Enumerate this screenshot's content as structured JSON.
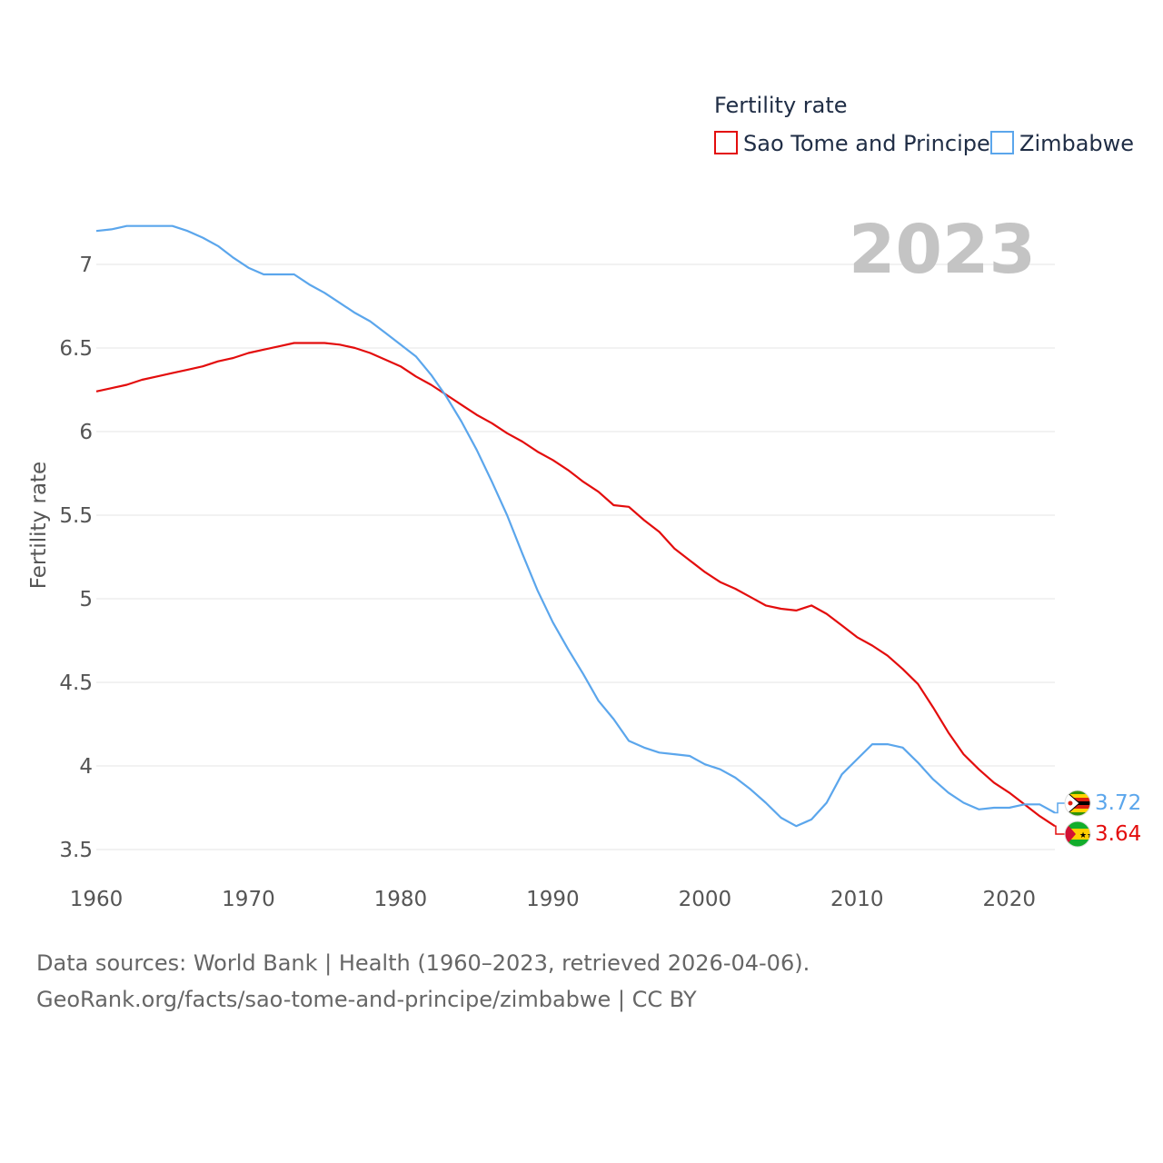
{
  "chart_data": {
    "type": "line",
    "title": "2023",
    "legend_title": "Fertility rate",
    "legend_position": "top-right",
    "xlabel": "",
    "ylabel": "Fertility rate",
    "xlim": [
      1960,
      2023
    ],
    "ylim": [
      3.38,
      7.3
    ],
    "xticks": [
      1960,
      1970,
      1980,
      1990,
      2000,
      2010,
      2020
    ],
    "yticks": [
      3.5,
      4,
      4.5,
      5,
      5.5,
      6,
      6.5,
      7
    ],
    "x": [
      1960,
      1961,
      1962,
      1963,
      1964,
      1965,
      1966,
      1967,
      1968,
      1969,
      1970,
      1971,
      1972,
      1973,
      1974,
      1975,
      1976,
      1977,
      1978,
      1979,
      1980,
      1981,
      1982,
      1983,
      1984,
      1985,
      1986,
      1987,
      1988,
      1989,
      1990,
      1991,
      1992,
      1993,
      1994,
      1995,
      1996,
      1997,
      1998,
      1999,
      2000,
      2001,
      2002,
      2003,
      2004,
      2005,
      2006,
      2007,
      2008,
      2009,
      2010,
      2011,
      2012,
      2013,
      2014,
      2015,
      2016,
      2017,
      2018,
      2019,
      2020,
      2021,
      2022,
      2023
    ],
    "series": [
      {
        "name": "Sao Tome and Principe",
        "color": "#e30d0d",
        "end_label": "3.64",
        "values": [
          6.24,
          6.26,
          6.28,
          6.31,
          6.33,
          6.35,
          6.37,
          6.39,
          6.42,
          6.44,
          6.47,
          6.49,
          6.51,
          6.53,
          6.53,
          6.53,
          6.52,
          6.5,
          6.47,
          6.43,
          6.39,
          6.33,
          6.28,
          6.22,
          6.16,
          6.1,
          6.05,
          5.99,
          5.94,
          5.88,
          5.83,
          5.77,
          5.7,
          5.64,
          5.56,
          5.55,
          5.47,
          5.4,
          5.3,
          5.23,
          5.16,
          5.1,
          5.06,
          5.01,
          4.96,
          4.94,
          4.93,
          4.96,
          4.91,
          4.84,
          4.77,
          4.72,
          4.66,
          4.58,
          4.49,
          4.35,
          4.2,
          4.07,
          3.98,
          3.9,
          3.84,
          3.77,
          3.7,
          3.64
        ]
      },
      {
        "name": "Zimbabwe",
        "color": "#5ba6ec",
        "end_label": "3.72",
        "values": [
          7.2,
          7.21,
          7.23,
          7.23,
          7.23,
          7.23,
          7.2,
          7.16,
          7.11,
          7.04,
          6.98,
          6.94,
          6.94,
          6.94,
          6.88,
          6.83,
          6.77,
          6.71,
          6.66,
          6.59,
          6.52,
          6.45,
          6.34,
          6.21,
          6.06,
          5.89,
          5.7,
          5.5,
          5.27,
          5.05,
          4.86,
          4.7,
          4.55,
          4.39,
          4.28,
          4.15,
          4.11,
          4.08,
          4.07,
          4.06,
          4.01,
          3.98,
          3.93,
          3.86,
          3.78,
          3.69,
          3.64,
          3.68,
          3.78,
          3.95,
          4.04,
          4.13,
          4.13,
          4.11,
          4.02,
          3.92,
          3.84,
          3.78,
          3.74,
          3.75,
          3.75,
          3.77,
          3.77,
          3.72
        ]
      }
    ]
  },
  "footer": {
    "line1": "Data sources: World Bank | Health (1960–2023, retrieved 2026-04-06).",
    "line2": "GeoRank.org/facts/sao-tome-and-principe/zimbabwe | CC BY"
  },
  "icons": {
    "zimbabwe": "zimbabwe-flag-icon",
    "sao_tome": "sao-tome-flag-icon"
  }
}
